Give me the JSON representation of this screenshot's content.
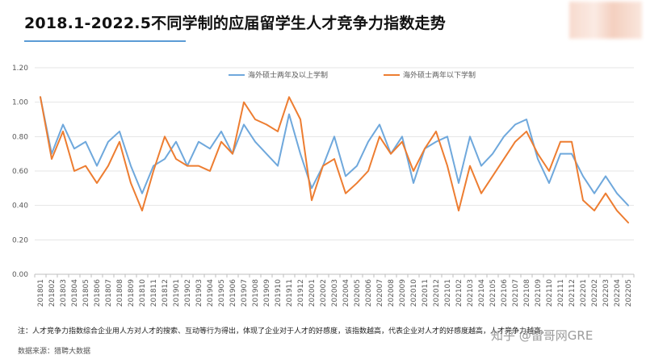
{
  "title": "2018.1-2022.5不同学制的应届留学生人才竞争力指数走势",
  "note": "注：人才竞争力指数综合企业用人方对人才的搜索、互动等行为得出，体现了企业对于人才的好感度，该指数越高，代表企业对人才的好感度越高，人才竞争力越高。",
  "source": "数据来源：猎聘大数据",
  "watermark": "知乎 @留哥网GRE",
  "colors": {
    "series1": "#6fa8dc",
    "series2": "#ed7d31",
    "title_underline": "#5b9bd5"
  },
  "chart_data": {
    "type": "line",
    "title": "2018.1-2022.5不同学制的应届留学生人才竞争力指数走势",
    "xlabel": "",
    "ylabel": "",
    "ylim": [
      0,
      1.2
    ],
    "yticks": [
      "0.00",
      "0.20",
      "0.40",
      "0.60",
      "0.80",
      "1.00",
      "1.20"
    ],
    "grid": "horizontal",
    "legend_position": "top-center",
    "categories": [
      "201801",
      "201802",
      "201803",
      "201804",
      "201805",
      "201806",
      "201807",
      "201808",
      "201809",
      "201810",
      "201811",
      "201812",
      "201901",
      "201902",
      "201903",
      "201904",
      "201905",
      "201906",
      "201907",
      "201908",
      "201909",
      "201910",
      "201911",
      "201912",
      "202001",
      "202002",
      "202003",
      "202004",
      "202005",
      "202006",
      "202007",
      "202008",
      "202009",
      "202010",
      "202011",
      "202012",
      "202101",
      "202102",
      "202103",
      "202104",
      "202105",
      "202106",
      "202107",
      "202108",
      "202109",
      "202110",
      "202111",
      "202112",
      "202201",
      "202202",
      "202203",
      "202204",
      "202205"
    ],
    "series": [
      {
        "name": "海外硕士两年及以上学制",
        "color": "#6fa8dc",
        "values": [
          1.03,
          0.7,
          0.87,
          0.73,
          0.77,
          0.63,
          0.77,
          0.83,
          0.63,
          0.47,
          0.63,
          0.67,
          0.77,
          0.63,
          0.77,
          0.73,
          0.83,
          0.7,
          0.87,
          0.77,
          0.7,
          0.63,
          0.93,
          0.7,
          0.5,
          0.63,
          0.8,
          0.57,
          0.63,
          0.77,
          0.87,
          0.7,
          0.8,
          0.53,
          0.73,
          0.77,
          0.8,
          0.53,
          0.8,
          0.63,
          0.7,
          0.8,
          0.87,
          0.9,
          0.67,
          0.53,
          0.7,
          0.7,
          0.57,
          0.47,
          0.57,
          0.47,
          0.4
        ]
      },
      {
        "name": "海外硕士两年以下学制",
        "color": "#ed7d31",
        "values": [
          1.03,
          0.67,
          0.83,
          0.6,
          0.63,
          0.53,
          0.63,
          0.77,
          0.53,
          0.37,
          0.6,
          0.8,
          0.67,
          0.63,
          0.63,
          0.6,
          0.77,
          0.7,
          1.0,
          0.9,
          0.87,
          0.83,
          1.03,
          0.9,
          0.43,
          0.63,
          0.67,
          0.47,
          0.53,
          0.6,
          0.8,
          0.7,
          0.77,
          0.6,
          0.73,
          0.83,
          0.63,
          0.37,
          0.63,
          0.47,
          0.57,
          0.67,
          0.77,
          0.83,
          0.7,
          0.6,
          0.77,
          0.77,
          0.43,
          0.37,
          0.47,
          0.37,
          0.3
        ]
      }
    ]
  }
}
